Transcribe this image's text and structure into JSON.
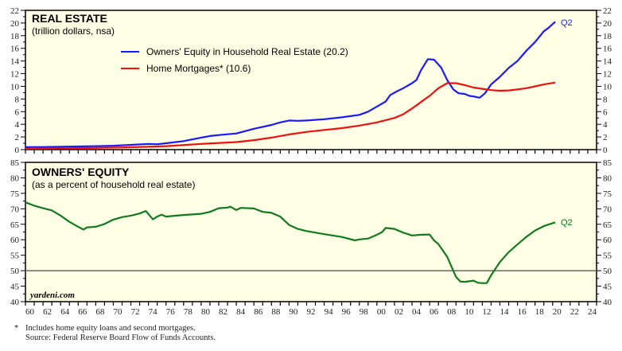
{
  "chart_data": [
    {
      "type": "line",
      "title": "REAL ESTATE",
      "subtitle": "(trillion dollars, nsa)",
      "xlabel": "",
      "ylabel": "",
      "xlim": [
        1960,
        2025
      ],
      "ylim": [
        0,
        22
      ],
      "yticks": [
        0,
        2,
        4,
        6,
        8,
        10,
        12,
        14,
        16,
        18,
        20,
        22
      ],
      "grid": false,
      "legend": "top-center",
      "end_label": "Q2",
      "series": [
        {
          "name": "Owners' Equity in Household Real Estate (20.2)",
          "color": "#1a1aff",
          "points": [
            [
              1960,
              0.4
            ],
            [
              1962,
              0.42
            ],
            [
              1964,
              0.45
            ],
            [
              1966,
              0.5
            ],
            [
              1968,
              0.55
            ],
            [
              1970,
              0.62
            ],
            [
              1972,
              0.75
            ],
            [
              1974,
              0.9
            ],
            [
              1975,
              0.85
            ],
            [
              1976,
              1.0
            ],
            [
              1978,
              1.35
            ],
            [
              1980,
              1.9
            ],
            [
              1981,
              2.15
            ],
            [
              1982,
              2.3
            ],
            [
              1984,
              2.55
            ],
            [
              1986,
              3.3
            ],
            [
              1988,
              3.9
            ],
            [
              1989,
              4.3
            ],
            [
              1990,
              4.6
            ],
            [
              1991,
              4.55
            ],
            [
              1992,
              4.6
            ],
            [
              1994,
              4.8
            ],
            [
              1996,
              5.1
            ],
            [
              1998,
              5.5
            ],
            [
              1999,
              6.0
            ],
            [
              2000,
              6.8
            ],
            [
              2001,
              7.6
            ],
            [
              2001.5,
              8.6
            ],
            [
              2002,
              9.0
            ],
            [
              2003,
              9.7
            ],
            [
              2004,
              10.5
            ],
            [
              2004.5,
              11.0
            ],
            [
              2005,
              12.5
            ],
            [
              2005.8,
              14.3
            ],
            [
              2006.5,
              14.2
            ],
            [
              2007.3,
              13.0
            ],
            [
              2008,
              11.0
            ],
            [
              2008.7,
              9.5
            ],
            [
              2009.3,
              8.9
            ],
            [
              2010,
              8.8
            ],
            [
              2010.5,
              8.5
            ],
            [
              2011,
              8.4
            ],
            [
              2011.7,
              8.2
            ],
            [
              2012.3,
              8.9
            ],
            [
              2013,
              10.3
            ],
            [
              2014,
              11.5
            ],
            [
              2015,
              12.9
            ],
            [
              2016,
              14.0
            ],
            [
              2017,
              15.6
            ],
            [
              2018,
              17.0
            ],
            [
              2019,
              18.7
            ],
            [
              2019.5,
              19.2
            ],
            [
              2020.3,
              20.2
            ]
          ]
        },
        {
          "name": "Home Mortgages* (10.6)",
          "color": "#ee1111",
          "points": [
            [
              1960,
              0.14
            ],
            [
              1964,
              0.2
            ],
            [
              1968,
              0.28
            ],
            [
              1972,
              0.38
            ],
            [
              1976,
              0.55
            ],
            [
              1980,
              0.9
            ],
            [
              1984,
              1.2
            ],
            [
              1986,
              1.5
            ],
            [
              1988,
              1.9
            ],
            [
              1990,
              2.4
            ],
            [
              1992,
              2.8
            ],
            [
              1994,
              3.1
            ],
            [
              1996,
              3.4
            ],
            [
              1998,
              3.8
            ],
            [
              2000,
              4.3
            ],
            [
              2002,
              5.0
            ],
            [
              2003,
              5.6
            ],
            [
              2004,
              6.5
            ],
            [
              2005,
              7.5
            ],
            [
              2006,
              8.5
            ],
            [
              2007,
              9.7
            ],
            [
              2008,
              10.5
            ],
            [
              2009,
              10.5
            ],
            [
              2010,
              10.2
            ],
            [
              2011,
              9.8
            ],
            [
              2012,
              9.6
            ],
            [
              2013,
              9.4
            ],
            [
              2014,
              9.3
            ],
            [
              2015,
              9.35
            ],
            [
              2016,
              9.5
            ],
            [
              2017,
              9.7
            ],
            [
              2018,
              10.0
            ],
            [
              2019,
              10.3
            ],
            [
              2020.3,
              10.6
            ]
          ]
        }
      ]
    },
    {
      "type": "line",
      "title": "OWNERS' EQUITY",
      "subtitle": "(as a percent of household real estate)",
      "xlabel": "",
      "ylabel": "",
      "xlim": [
        1960,
        2025
      ],
      "ylim": [
        40,
        85
      ],
      "yticks": [
        40,
        45,
        50,
        55,
        60,
        65,
        70,
        75,
        80,
        85
      ],
      "reference_line": 50,
      "grid": false,
      "end_label": "Q2",
      "series": [
        {
          "name": "Owners' Equity (% of household real estate)",
          "color": "#117a1e",
          "points": [
            [
              1960,
              72.1
            ],
            [
              1961,
              71.0
            ],
            [
              1962,
              70.2
            ],
            [
              1963,
              69.5
            ],
            [
              1964,
              67.8
            ],
            [
              1965,
              65.8
            ],
            [
              1966,
              64.2
            ],
            [
              1966.6,
              63.3
            ],
            [
              1967,
              64.0
            ],
            [
              1968,
              64.2
            ],
            [
              1969,
              65.1
            ],
            [
              1970,
              66.5
            ],
            [
              1971,
              67.3
            ],
            [
              1972,
              67.8
            ],
            [
              1973,
              68.5
            ],
            [
              1973.7,
              69.3
            ],
            [
              1974.5,
              66.6
            ],
            [
              1975,
              67.5
            ],
            [
              1975.5,
              68.1
            ],
            [
              1976,
              67.5
            ],
            [
              1978,
              68.0
            ],
            [
              1980,
              68.4
            ],
            [
              1981,
              69.0
            ],
            [
              1982,
              70.2
            ],
            [
              1983,
              70.4
            ],
            [
              1983.3,
              70.7
            ],
            [
              1984,
              69.6
            ],
            [
              1984.5,
              70.3
            ],
            [
              1986,
              70.1
            ],
            [
              1987,
              69.0
            ],
            [
              1988,
              68.7
            ],
            [
              1989,
              67.5
            ],
            [
              1990,
              64.8
            ],
            [
              1991,
              63.5
            ],
            [
              1992,
              62.8
            ],
            [
              1994,
              61.8
            ],
            [
              1996,
              60.9
            ],
            [
              1997.5,
              59.8
            ],
            [
              1998,
              60.1
            ],
            [
              1999,
              60.4
            ],
            [
              2000,
              61.6
            ],
            [
              2000.6,
              62.5
            ],
            [
              2001,
              63.8
            ],
            [
              2002,
              63.5
            ],
            [
              2003,
              62.3
            ],
            [
              2004,
              61.4
            ],
            [
              2005,
              61.6
            ],
            [
              2006,
              61.7
            ],
            [
              2006.5,
              59.8
            ],
            [
              2007,
              58.6
            ],
            [
              2008,
              54.5
            ],
            [
              2009,
              48.0
            ],
            [
              2009.5,
              46.5
            ],
            [
              2010,
              46.4
            ],
            [
              2011,
              46.8
            ],
            [
              2011.5,
              46.1
            ],
            [
              2012,
              46.0
            ],
            [
              2012.5,
              46.0
            ],
            [
              2013,
              48.5
            ],
            [
              2014,
              52.8
            ],
            [
              2015,
              56.0
            ],
            [
              2016,
              58.5
            ],
            [
              2017,
              60.9
            ],
            [
              2018,
              63.0
            ],
            [
              2019,
              64.4
            ],
            [
              2019.5,
              64.9
            ],
            [
              2020.3,
              65.6
            ]
          ]
        }
      ]
    }
  ],
  "xaxis": {
    "tick_labels": [
      "60",
      "62",
      "64",
      "66",
      "68",
      "70",
      "72",
      "74",
      "76",
      "78",
      "80",
      "82",
      "84",
      "86",
      "88",
      "90",
      "92",
      "94",
      "96",
      "98",
      "00",
      "02",
      "04",
      "06",
      "08",
      "10",
      "12",
      "14",
      "16",
      "18",
      "20",
      "22",
      "24"
    ]
  },
  "brand": "yardeni.com",
  "footnote": {
    "marker": "*",
    "note": "Includes home equity loans and second mortgages.",
    "source": "Source: Federal Reserve Board Flow of Funds Accounts."
  },
  "colors": {
    "plot_bg": "#ffffe5",
    "axis": "#000000",
    "reference_line": "#666666"
  }
}
